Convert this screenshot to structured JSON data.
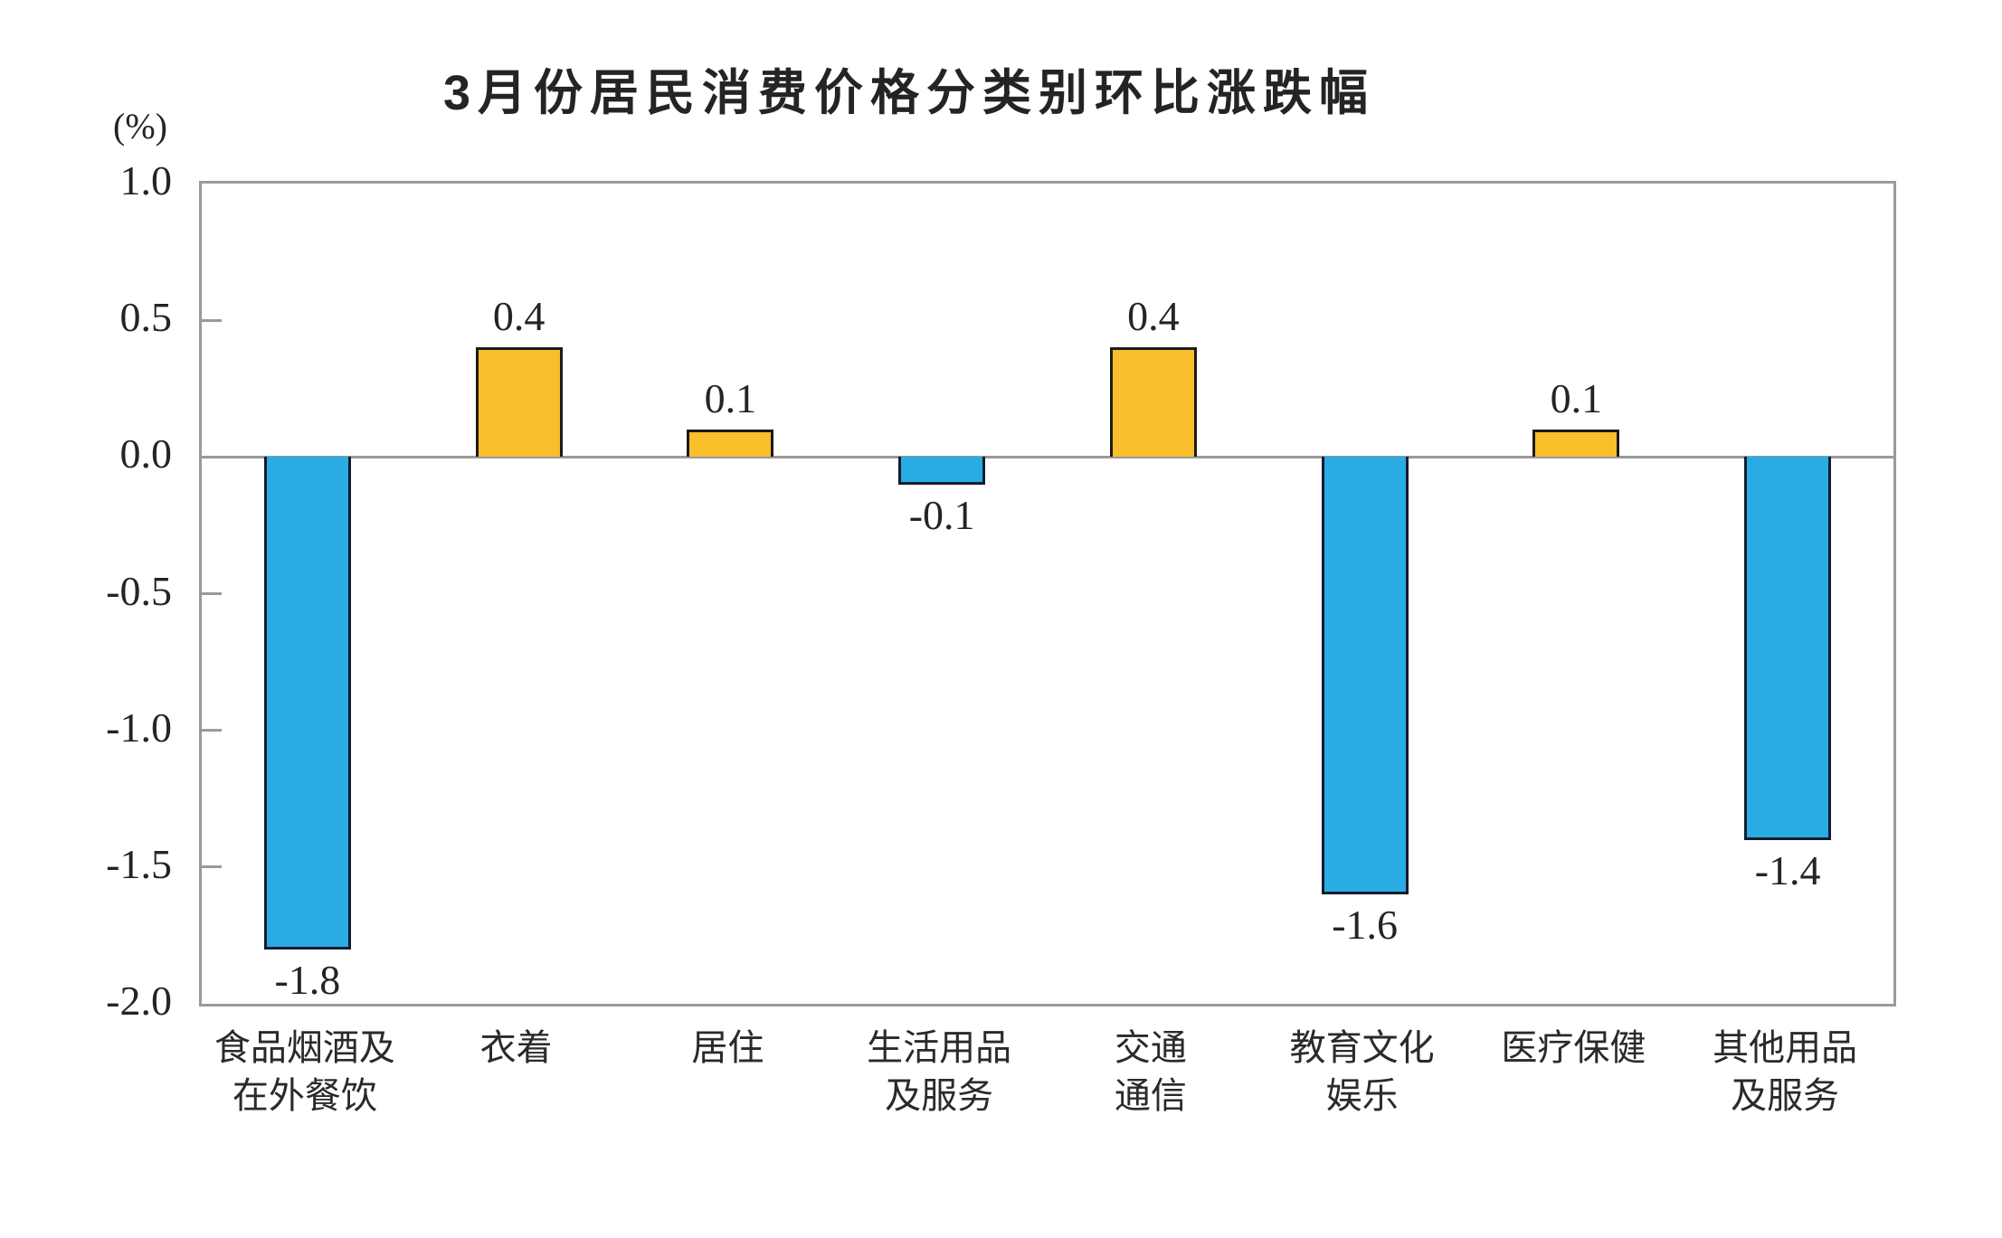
{
  "chart_data": {
    "type": "bar",
    "title": "3月份居民消费价格分类别环比涨跌幅",
    "unit_label": "(%)",
    "categories": [
      [
        "食品烟酒及",
        "在外餐饮"
      ],
      [
        "衣着"
      ],
      [
        "居住"
      ],
      [
        "生活用品",
        "及服务"
      ],
      [
        "交通",
        "通信"
      ],
      [
        "教育文化",
        "娱乐"
      ],
      [
        "医疗保健"
      ],
      [
        "其他用品",
        "及服务"
      ]
    ],
    "values": [
      -1.8,
      0.4,
      0.1,
      -0.1,
      0.4,
      -1.6,
      0.1,
      -1.4
    ],
    "value_labels": [
      "-1.8",
      "0.4",
      "0.1",
      "-0.1",
      "0.4",
      "-1.6",
      "0.1",
      "-1.4"
    ],
    "yticks": [
      1.0,
      0.5,
      0.0,
      -0.5,
      -1.0,
      -1.5,
      -2.0
    ],
    "ytick_labels": [
      "1.0",
      "0.5",
      "0.0",
      "-0.5",
      "-1.0",
      "-1.5",
      "-2.0"
    ],
    "ylim": [
      -2.0,
      1.0
    ],
    "legend": "none",
    "grid": false,
    "colors": {
      "bar_positive": "#f9be2b",
      "bar_negative": "#29ace3",
      "bar_border": "#1a1a1a",
      "axis_line": "#9a9a9a",
      "text": "#242424"
    }
  }
}
